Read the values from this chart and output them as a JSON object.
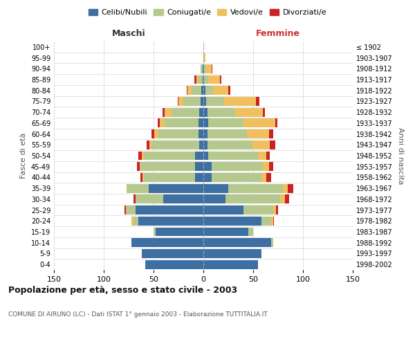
{
  "age_groups": [
    "0-4",
    "5-9",
    "10-14",
    "15-19",
    "20-24",
    "25-29",
    "30-34",
    "35-39",
    "40-44",
    "45-49",
    "50-54",
    "55-59",
    "60-64",
    "65-69",
    "70-74",
    "75-79",
    "80-84",
    "85-89",
    "90-94",
    "95-99",
    "100+"
  ],
  "birth_years": [
    "1998-2002",
    "1993-1997",
    "1988-1992",
    "1983-1987",
    "1978-1982",
    "1973-1977",
    "1968-1972",
    "1963-1967",
    "1958-1962",
    "1953-1957",
    "1948-1952",
    "1943-1947",
    "1938-1942",
    "1933-1937",
    "1928-1932",
    "1923-1927",
    "1918-1922",
    "1913-1917",
    "1908-1912",
    "1903-1907",
    "≤ 1902"
  ],
  "maschi": {
    "celibi": [
      58,
      62,
      72,
      48,
      65,
      68,
      40,
      55,
      8,
      8,
      8,
      4,
      5,
      5,
      4,
      3,
      2,
      1,
      1,
      0,
      0
    ],
    "coniugati": [
      0,
      0,
      0,
      2,
      5,
      10,
      28,
      22,
      52,
      55,
      52,
      48,
      40,
      34,
      28,
      17,
      10,
      4,
      2,
      0,
      0
    ],
    "vedovi": [
      0,
      0,
      0,
      0,
      2,
      0,
      0,
      0,
      1,
      1,
      2,
      2,
      4,
      5,
      7,
      5,
      4,
      2,
      0,
      0,
      0
    ],
    "divorziati": [
      0,
      0,
      0,
      0,
      0,
      1,
      2,
      0,
      2,
      3,
      3,
      3,
      3,
      2,
      2,
      1,
      1,
      2,
      0,
      0,
      0
    ]
  },
  "femmine": {
    "nubili": [
      55,
      58,
      68,
      45,
      58,
      40,
      22,
      25,
      8,
      8,
      5,
      4,
      4,
      5,
      4,
      3,
      2,
      1,
      1,
      0,
      0
    ],
    "coniugate": [
      0,
      0,
      2,
      5,
      10,
      30,
      55,
      55,
      50,
      52,
      50,
      45,
      40,
      35,
      28,
      18,
      8,
      4,
      2,
      0,
      0
    ],
    "vedove": [
      0,
      0,
      0,
      0,
      2,
      3,
      5,
      5,
      5,
      6,
      8,
      18,
      22,
      32,
      28,
      32,
      15,
      12,
      5,
      2,
      0
    ],
    "divorziate": [
      0,
      0,
      0,
      0,
      1,
      2,
      4,
      5,
      5,
      4,
      4,
      5,
      4,
      2,
      2,
      3,
      2,
      1,
      1,
      0,
      0
    ]
  },
  "color_celibi": "#3d6fa3",
  "color_coniugati": "#b5c98e",
  "color_vedovi": "#f0c060",
  "color_divorziati": "#cc2222",
  "title": "Popolazione per età, sesso e stato civile - 2003",
  "subtitle": "COMUNE DI AIRUNO (LC) - Dati ISTAT 1° gennaio 2003 - Elaborazione TUTTITALIA.IT",
  "xlabel_left": "Maschi",
  "xlabel_right": "Femmine",
  "ylabel_left": "Fasce di età",
  "ylabel_right": "Anni di nascita",
  "xlim": 150,
  "bg_color": "#ffffff",
  "grid_color": "#cccccc"
}
